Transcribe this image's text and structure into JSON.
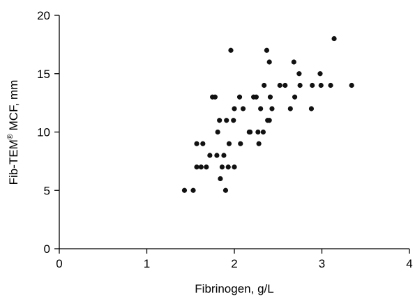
{
  "chart_data": {
    "type": "scatter",
    "title": "",
    "xlabel": "Fibrinogen, g/L",
    "ylabel": {
      "main": "Fib-TEM",
      "superscript": "®",
      "rest": " MCF, mm"
    },
    "xlim": [
      0,
      4
    ],
    "ylim": [
      0,
      20
    ],
    "xticks": [
      0,
      1,
      2,
      3,
      4
    ],
    "yticks": [
      0,
      5,
      10,
      15,
      20
    ],
    "grid": false,
    "point_color": "#111111",
    "points": [
      {
        "x": 1.43,
        "y": 5
      },
      {
        "x": 1.53,
        "y": 5
      },
      {
        "x": 1.57,
        "y": 9
      },
      {
        "x": 1.57,
        "y": 7
      },
      {
        "x": 1.62,
        "y": 7
      },
      {
        "x": 1.64,
        "y": 9
      },
      {
        "x": 1.68,
        "y": 7
      },
      {
        "x": 1.72,
        "y": 8
      },
      {
        "x": 1.75,
        "y": 13
      },
      {
        "x": 1.78,
        "y": 13
      },
      {
        "x": 1.8,
        "y": 8
      },
      {
        "x": 1.81,
        "y": 10
      },
      {
        "x": 1.83,
        "y": 11
      },
      {
        "x": 1.84,
        "y": 6
      },
      {
        "x": 1.86,
        "y": 7
      },
      {
        "x": 1.88,
        "y": 8
      },
      {
        "x": 1.9,
        "y": 5
      },
      {
        "x": 1.91,
        "y": 11
      },
      {
        "x": 1.93,
        "y": 7
      },
      {
        "x": 1.94,
        "y": 9
      },
      {
        "x": 1.96,
        "y": 17
      },
      {
        "x": 1.99,
        "y": 11
      },
      {
        "x": 2.0,
        "y": 12
      },
      {
        "x": 2.0,
        "y": 7
      },
      {
        "x": 2.06,
        "y": 13
      },
      {
        "x": 2.07,
        "y": 9
      },
      {
        "x": 2.1,
        "y": 12
      },
      {
        "x": 2.17,
        "y": 10
      },
      {
        "x": 2.18,
        "y": 10
      },
      {
        "x": 2.22,
        "y": 13
      },
      {
        "x": 2.25,
        "y": 13
      },
      {
        "x": 2.27,
        "y": 10
      },
      {
        "x": 2.28,
        "y": 9
      },
      {
        "x": 2.3,
        "y": 12
      },
      {
        "x": 2.33,
        "y": 10
      },
      {
        "x": 2.34,
        "y": 14
      },
      {
        "x": 2.37,
        "y": 17
      },
      {
        "x": 2.38,
        "y": 11
      },
      {
        "x": 2.4,
        "y": 11
      },
      {
        "x": 2.4,
        "y": 16
      },
      {
        "x": 2.41,
        "y": 13
      },
      {
        "x": 2.43,
        "y": 12
      },
      {
        "x": 2.52,
        "y": 14
      },
      {
        "x": 2.58,
        "y": 14
      },
      {
        "x": 2.64,
        "y": 12
      },
      {
        "x": 2.68,
        "y": 16
      },
      {
        "x": 2.69,
        "y": 13
      },
      {
        "x": 2.74,
        "y": 15
      },
      {
        "x": 2.75,
        "y": 14
      },
      {
        "x": 2.88,
        "y": 12
      },
      {
        "x": 2.89,
        "y": 14
      },
      {
        "x": 2.98,
        "y": 15
      },
      {
        "x": 2.99,
        "y": 14
      },
      {
        "x": 3.1,
        "y": 14
      },
      {
        "x": 3.14,
        "y": 18
      },
      {
        "x": 3.34,
        "y": 14
      }
    ]
  }
}
